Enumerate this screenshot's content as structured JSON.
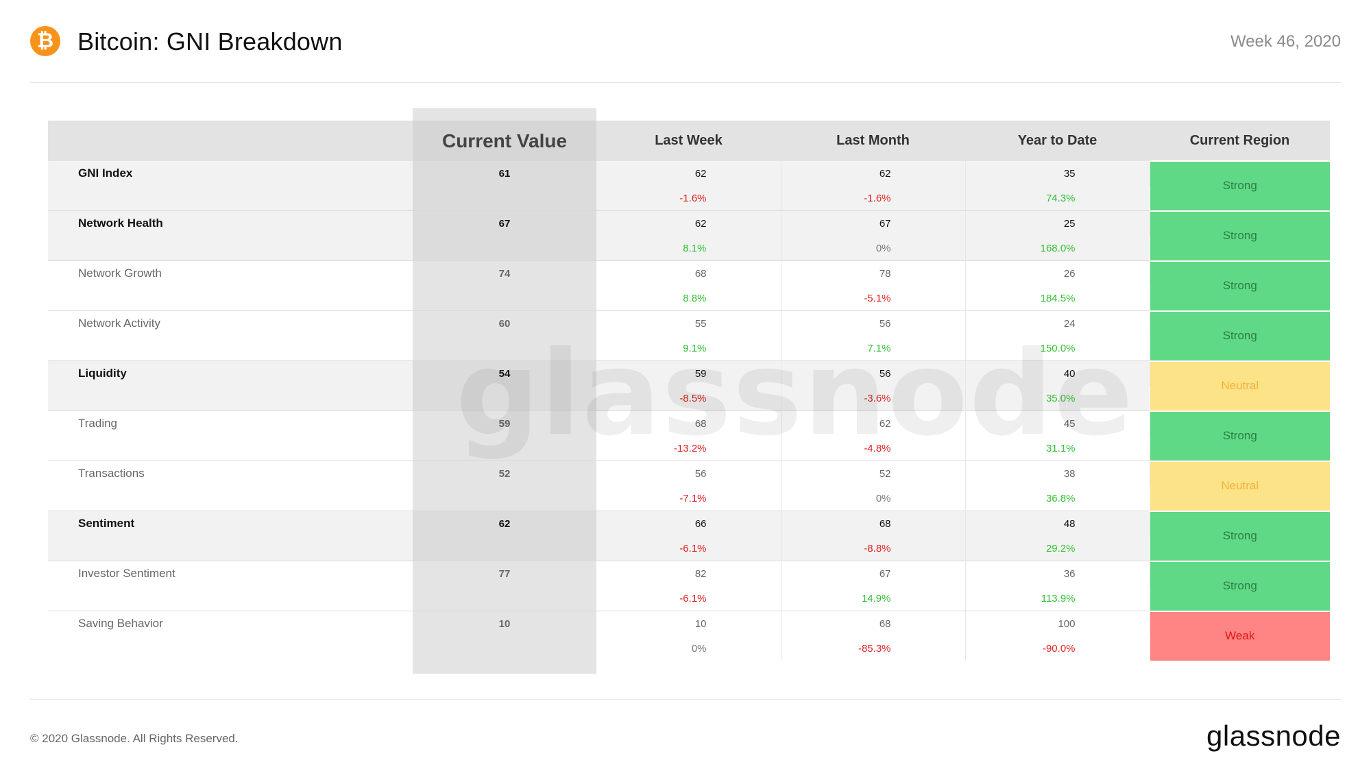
{
  "header": {
    "logo_glyph": "₿",
    "title": "Bitcoin: GNI Breakdown",
    "week": "Week 46, 2020"
  },
  "table": {
    "columns": [
      "",
      "Current Value",
      "Last Week",
      "Last Month",
      "Year to Date",
      "Current Region"
    ],
    "rows": [
      {
        "label": "GNI Index",
        "level": "top",
        "current": "61",
        "last_week": "62",
        "last_month": "62",
        "ytd": "35",
        "week_pct": "-1.6%",
        "month_pct": "-1.6%",
        "ytd_pct": "74.3%",
        "region": "Strong"
      },
      {
        "label": "Network Health",
        "level": "top",
        "current": "67",
        "last_week": "62",
        "last_month": "67",
        "ytd": "25",
        "week_pct": "8.1%",
        "month_pct": "0%",
        "ytd_pct": "168.0%",
        "region": "Strong"
      },
      {
        "label": "Network Growth",
        "level": "sub",
        "current": "74",
        "last_week": "68",
        "last_month": "78",
        "ytd": "26",
        "week_pct": "8.8%",
        "month_pct": "-5.1%",
        "ytd_pct": "184.5%",
        "region": "Strong"
      },
      {
        "label": "Network Activity",
        "level": "sub",
        "current": "60",
        "last_week": "55",
        "last_month": "56",
        "ytd": "24",
        "week_pct": "9.1%",
        "month_pct": "7.1%",
        "ytd_pct": "150.0%",
        "region": "Strong"
      },
      {
        "label": "Liquidity",
        "level": "top",
        "current": "54",
        "last_week": "59",
        "last_month": "56",
        "ytd": "40",
        "week_pct": "-8.5%",
        "month_pct": "-3.6%",
        "ytd_pct": "35.0%",
        "region": "Neutral"
      },
      {
        "label": "Trading",
        "level": "sub",
        "current": "59",
        "last_week": "68",
        "last_month": "62",
        "ytd": "45",
        "week_pct": "-13.2%",
        "month_pct": "-4.8%",
        "ytd_pct": "31.1%",
        "region": "Strong"
      },
      {
        "label": "Transactions",
        "level": "sub",
        "current": "52",
        "last_week": "56",
        "last_month": "52",
        "ytd": "38",
        "week_pct": "-7.1%",
        "month_pct": "0%",
        "ytd_pct": "36.8%",
        "region": "Neutral"
      },
      {
        "label": "Sentiment",
        "level": "top",
        "current": "62",
        "last_week": "66",
        "last_month": "68",
        "ytd": "48",
        "week_pct": "-6.1%",
        "month_pct": "-8.8%",
        "ytd_pct": "29.2%",
        "region": "Strong"
      },
      {
        "label": "Investor Sentiment",
        "level": "sub",
        "current": "77",
        "last_week": "82",
        "last_month": "67",
        "ytd": "36",
        "week_pct": "-6.1%",
        "month_pct": "14.9%",
        "ytd_pct": "113.9%",
        "region": "Strong"
      },
      {
        "label": "Saving Behavior",
        "level": "sub",
        "current": "10",
        "last_week": "10",
        "last_month": "68",
        "ytd": "100",
        "week_pct": "0%",
        "month_pct": "-85.3%",
        "ytd_pct": "-90.0%",
        "region": "Weak"
      }
    ]
  },
  "watermark": "glassnode",
  "footer": {
    "copyright": "© 2020 Glassnode. All Rights Reserved.",
    "brand": "glassnode"
  },
  "colors": {
    "strong": "#5fd985",
    "neutral": "#fce387",
    "weak": "#ff8585",
    "positive": "#33c033",
    "negative": "#e02020",
    "bitcoin": "#F7931A"
  }
}
